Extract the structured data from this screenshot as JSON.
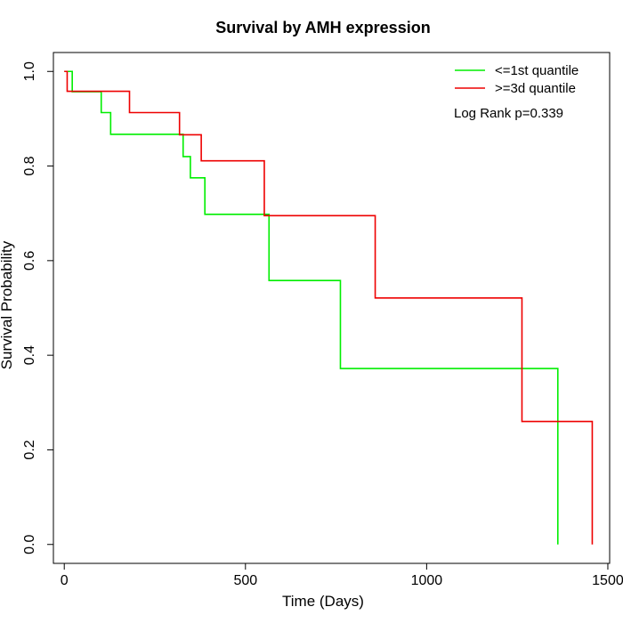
{
  "chart_data": {
    "type": "line",
    "step": true,
    "title": "Survival by AMH expression",
    "xlabel": "Time (Days)",
    "ylabel": "Survival Probability",
    "xlim": [
      -30,
      1505
    ],
    "ylim": [
      -0.04,
      1.04
    ],
    "xticks": [
      0,
      500,
      1000,
      1500
    ],
    "yticks": [
      0.0,
      0.2,
      0.4,
      0.6,
      0.8,
      1.0
    ],
    "xtick_labels": [
      "0",
      "500",
      "1000",
      "1500"
    ],
    "ytick_labels": [
      "0.0",
      "0.2",
      "0.4",
      "0.6",
      "0.8",
      "1.0"
    ],
    "grid": false,
    "legend_position": "top-right",
    "annotation": "Log Rank p=0.339",
    "series": [
      {
        "name": "<=1st quantile",
        "color": "#00ee00",
        "x": [
          0,
          22,
          102,
          128,
          328,
          348,
          388,
          565,
          762,
          1362,
          1362
        ],
        "y": [
          1.0,
          0.957,
          0.913,
          0.867,
          0.82,
          0.775,
          0.698,
          0.558,
          0.372,
          0.372,
          0.0
        ]
      },
      {
        "name": ">=3d quantile",
        "color": "#ee0000",
        "x": [
          0,
          8,
          180,
          318,
          378,
          552,
          858,
          1263,
          1457,
          1457
        ],
        "y": [
          1.0,
          0.958,
          0.913,
          0.866,
          0.811,
          0.695,
          0.521,
          0.26,
          0.26,
          0.0
        ]
      }
    ]
  }
}
